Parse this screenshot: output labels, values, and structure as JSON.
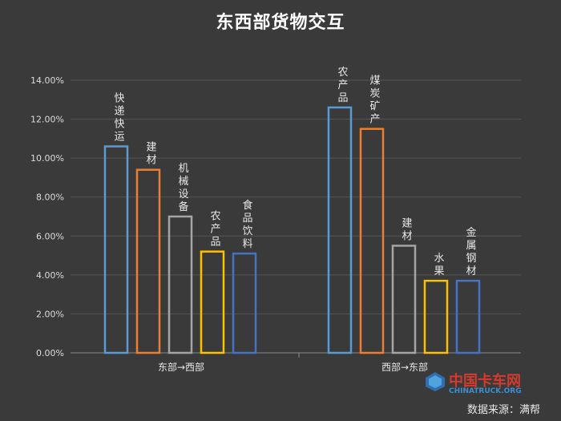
{
  "chart_data": {
    "type": "bar",
    "title": "东西部货物交互",
    "ylim": [
      0,
      14
    ],
    "yticks": [
      "0.00%",
      "2.00%",
      "4.00%",
      "6.00%",
      "8.00%",
      "10.00%",
      "12.00%",
      "14.00%"
    ],
    "grid": true,
    "groups": [
      {
        "name": "东部→西部",
        "bars": [
          {
            "label": "快递快运",
            "value": 10.6,
            "color": "#5b9bd5"
          },
          {
            "label": "建材",
            "value": 9.4,
            "color": "#ed7d31"
          },
          {
            "label": "机械设备",
            "value": 7.0,
            "color": "#a5a5a5"
          },
          {
            "label": "农产品",
            "value": 5.2,
            "color": "#ffc000"
          },
          {
            "label": "食品饮料",
            "value": 5.1,
            "color": "#4472c4"
          }
        ]
      },
      {
        "name": "西部→东部",
        "bars": [
          {
            "label": "农产品",
            "value": 12.6,
            "color": "#5b9bd5"
          },
          {
            "label": "煤炭矿产",
            "value": 11.5,
            "color": "#ed7d31"
          },
          {
            "label": "建材",
            "value": 5.5,
            "color": "#a5a5a5"
          },
          {
            "label": "水果",
            "value": 3.7,
            "color": "#ffc000"
          },
          {
            "label": "金属钢材",
            "value": 3.7,
            "color": "#4472c4"
          }
        ]
      }
    ]
  },
  "source_text": "数据来源：满帮",
  "watermark": {
    "cn": "中国卡车网",
    "en": "CHINATRUCK.ORG"
  }
}
